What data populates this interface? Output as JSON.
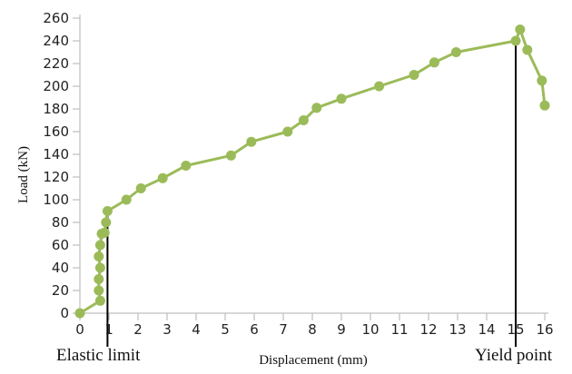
{
  "chart_data": {
    "type": "line",
    "title": "",
    "xlabel": "Displacement (mm)",
    "ylabel": "Load (kN)",
    "xlim": [
      0,
      16
    ],
    "ylim": [
      0,
      260
    ],
    "x_ticks": [
      0,
      1,
      2,
      3,
      4,
      5,
      6,
      7,
      8,
      9,
      10,
      11,
      12,
      13,
      14,
      15,
      16
    ],
    "y_ticks": [
      0,
      20,
      40,
      60,
      80,
      100,
      120,
      140,
      160,
      180,
      200,
      220,
      240,
      260
    ],
    "grid": false,
    "legend": false,
    "colors": {
      "series": "#9bbb59",
      "axis": "#bfbfbf",
      "annotation_line": "#000000"
    },
    "series": [
      {
        "points": [
          {
            "x": 0.0,
            "y": 0
          },
          {
            "x": 0.7,
            "y": 11
          },
          {
            "x": 0.65,
            "y": 20
          },
          {
            "x": 0.65,
            "y": 30
          },
          {
            "x": 0.7,
            "y": 40
          },
          {
            "x": 0.65,
            "y": 50
          },
          {
            "x": 0.7,
            "y": 60
          },
          {
            "x": 0.75,
            "y": 70
          },
          {
            "x": 0.85,
            "y": 71
          },
          {
            "x": 0.9,
            "y": 80
          },
          {
            "x": 0.95,
            "y": 90
          },
          {
            "x": 1.6,
            "y": 100
          },
          {
            "x": 2.1,
            "y": 110
          },
          {
            "x": 2.85,
            "y": 119
          },
          {
            "x": 3.65,
            "y": 130
          },
          {
            "x": 5.2,
            "y": 139
          },
          {
            "x": 5.9,
            "y": 151
          },
          {
            "x": 7.15,
            "y": 160
          },
          {
            "x": 7.7,
            "y": 170
          },
          {
            "x": 8.15,
            "y": 181
          },
          {
            "x": 9.0,
            "y": 189
          },
          {
            "x": 10.3,
            "y": 200
          },
          {
            "x": 11.5,
            "y": 210
          },
          {
            "x": 12.2,
            "y": 221
          },
          {
            "x": 12.95,
            "y": 230
          },
          {
            "x": 15.0,
            "y": 240
          },
          {
            "x": 15.15,
            "y": 250
          },
          {
            "x": 15.4,
            "y": 232
          },
          {
            "x": 15.9,
            "y": 205
          },
          {
            "x": 16.0,
            "y": 183
          }
        ]
      }
    ],
    "annotations": [
      {
        "label": "Elastic limit",
        "x": 0.95,
        "y": 90
      },
      {
        "label": "Yield point",
        "x": 15.0,
        "y": 240
      }
    ]
  }
}
